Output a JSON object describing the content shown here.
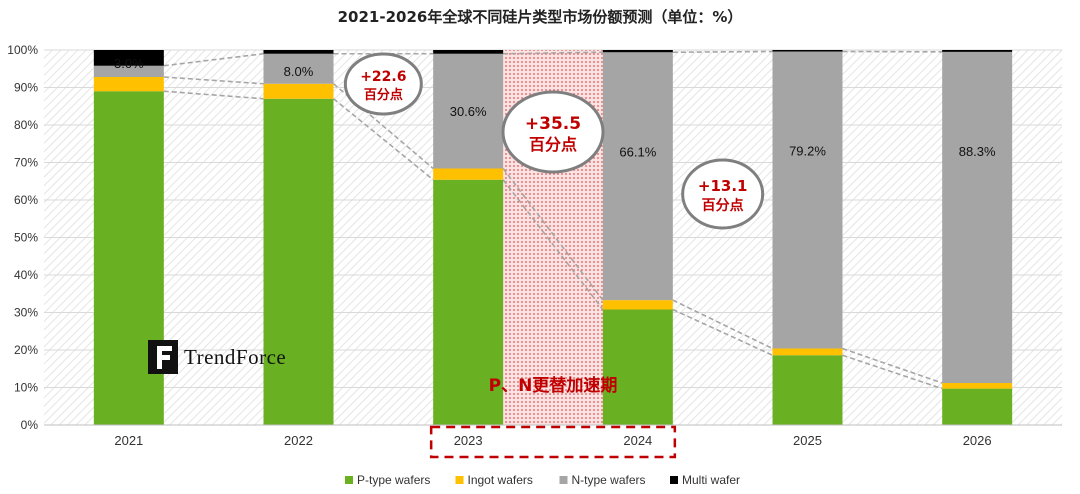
{
  "chart_data": {
    "type": "bar",
    "stacked": true,
    "percent": true,
    "title": "2021-2026年全球不同硅片类型市场份额预测（单位：%）",
    "categories": [
      "2021",
      "2022",
      "2023",
      "2024",
      "2025",
      "2026"
    ],
    "ylim": [
      0,
      100
    ],
    "yticks": [
      "0%",
      "10%",
      "20%",
      "30%",
      "40%",
      "50%",
      "60%",
      "70%",
      "80%",
      "90%",
      "100%"
    ],
    "grid": true,
    "legend_position": "bottom",
    "series": [
      {
        "name": "P-type wafers",
        "color": "#6ab023",
        "values": [
          89.0,
          87.0,
          65.4,
          30.8,
          18.6,
          9.7
        ]
      },
      {
        "name": "Ingot wafers",
        "color": "#ffc000",
        "values": [
          3.8,
          4.0,
          3.0,
          2.5,
          1.8,
          1.5
        ]
      },
      {
        "name": "N-type wafers",
        "color": "#a5a5a5",
        "values": [
          3.0,
          8.0,
          30.6,
          66.1,
          79.2,
          88.3
        ]
      },
      {
        "name": "Multi wafer",
        "color": "#000000",
        "values": [
          4.2,
          1.0,
          1.0,
          0.6,
          0.4,
          0.5
        ]
      }
    ],
    "data_labels": [
      "3.0%",
      "8.0%",
      "30.6%",
      "66.1%",
      "79.2%",
      "88.3%"
    ],
    "annotations": [
      {
        "line1": "+22.6",
        "line2": "百分点"
      },
      {
        "line1": "+35.5",
        "line2": "百分点"
      },
      {
        "line1": "+13.1",
        "line2": "百分点"
      }
    ],
    "highlight_period": {
      "from": "2023",
      "to": "2024",
      "label": "P、N更替加速期"
    }
  },
  "brand": {
    "logo_text": "TrendForce",
    "color": "#111111"
  }
}
